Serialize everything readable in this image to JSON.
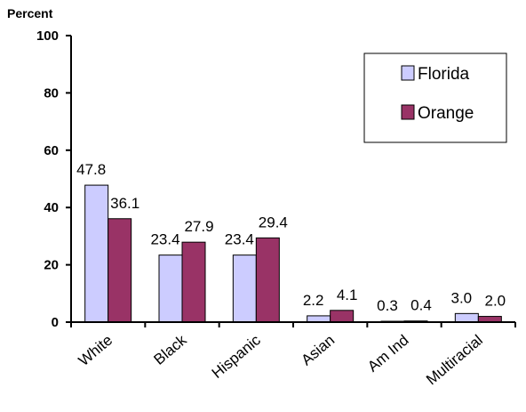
{
  "chart_data": {
    "type": "bar",
    "ylabel": "Percent",
    "xlabel": "",
    "title": "",
    "ylim": [
      0,
      100
    ],
    "yticks": [
      0,
      20,
      40,
      60,
      80,
      100
    ],
    "categories": [
      "White",
      "Black",
      "Hispanic",
      "Asian",
      "Am Ind",
      "Multiracial"
    ],
    "series": [
      {
        "name": "Florida",
        "color": "#ccccff",
        "values": [
          47.8,
          23.4,
          23.4,
          2.2,
          0.3,
          3.0
        ],
        "labels": [
          "47.8",
          "23.4",
          "23.4",
          "2.2",
          "0.3",
          "3.0"
        ]
      },
      {
        "name": "Orange",
        "color": "#993366",
        "values": [
          36.1,
          27.9,
          29.4,
          4.1,
          0.4,
          2.0
        ],
        "labels": [
          "36.1",
          "27.9",
          "29.4",
          "4.1",
          "0.4",
          "2.0"
        ]
      }
    ],
    "legend_position": "top-right",
    "grid": false
  }
}
